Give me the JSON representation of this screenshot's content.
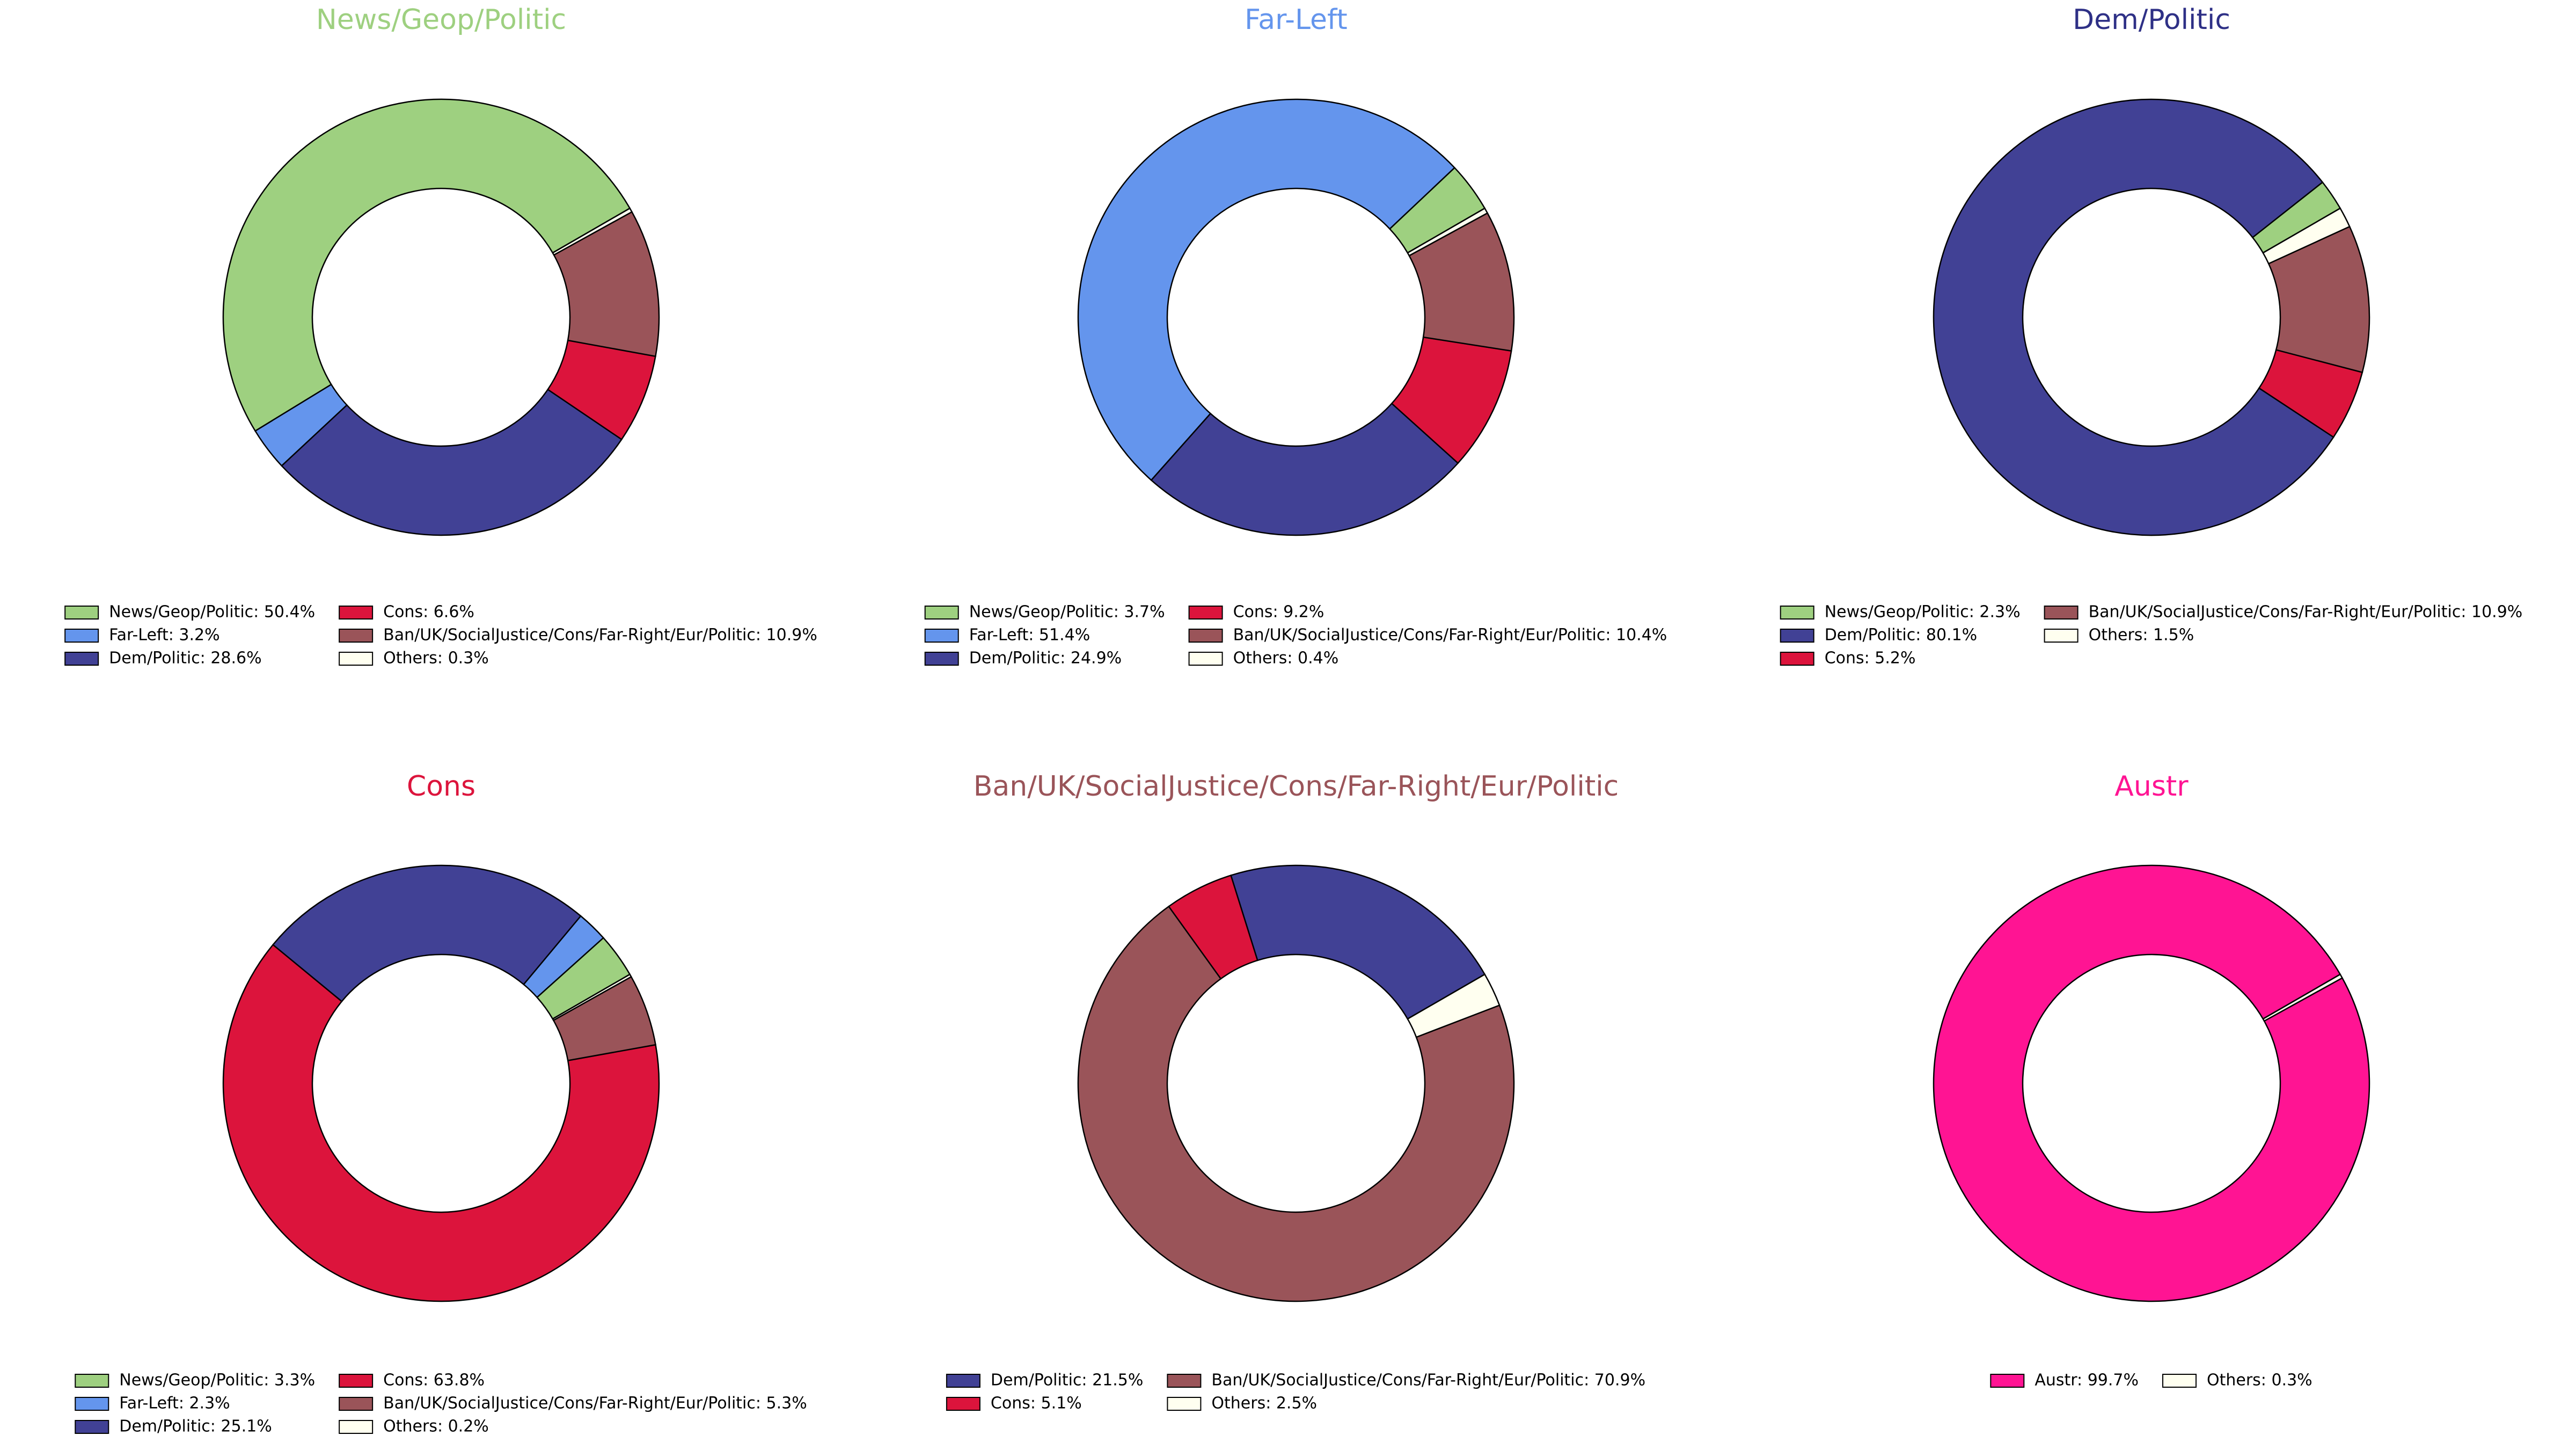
{
  "chart_data": [
    {
      "type": "pie",
      "title": "News/Geop/Politic",
      "title_color": "#9ed080",
      "labels": [
        "News/Geop/Politic: 50.4%",
        "Far-Left: 3.2%",
        "Dem/Politic: 28.6%",
        "Cons: 6.6%",
        "Ban/UK/SocialJustice/Cons/Far-Right/Eur/Politic: 10.9%",
        "Others: 0.3%"
      ],
      "values": [
        50.4,
        3.2,
        28.6,
        6.6,
        10.9,
        0.3
      ],
      "colors": [
        "#9ed080",
        "#6495ed",
        "#414195",
        "#dc143c",
        "#9a5459",
        "#fffff0"
      ]
    },
    {
      "type": "pie",
      "title": "Far-Left",
      "title_color": "#6495ed",
      "labels": [
        "News/Geop/Politic: 3.7%",
        "Far-Left: 51.4%",
        "Dem/Politic: 24.9%",
        "Cons: 9.2%",
        "Ban/UK/SocialJustice/Cons/Far-Right/Eur/Politic: 10.4%",
        "Others: 0.4%"
      ],
      "values": [
        3.7,
        51.4,
        24.9,
        9.2,
        10.4,
        0.4
      ],
      "colors": [
        "#9ed080",
        "#6495ed",
        "#414195",
        "#dc143c",
        "#9a5459",
        "#fffff0"
      ]
    },
    {
      "type": "pie",
      "title": "Dem/Politic",
      "title_color": "#2e3086",
      "labels": [
        "News/Geop/Politic: 2.3%",
        "Dem/Politic: 80.1%",
        "Cons: 5.2%",
        "Ban/UK/SocialJustice/Cons/Far-Right/Eur/Politic: 10.9%",
        "Others: 1.5%"
      ],
      "values": [
        2.3,
        80.1,
        5.2,
        10.9,
        1.5
      ],
      "colors": [
        "#9ed080",
        "#414195",
        "#dc143c",
        "#9a5459",
        "#fffff0"
      ]
    },
    {
      "type": "pie",
      "title": "Cons",
      "title_color": "#dc143c",
      "labels": [
        "News/Geop/Politic: 3.3%",
        "Far-Left: 2.3%",
        "Dem/Politic: 25.1%",
        "Cons: 63.8%",
        "Ban/UK/SocialJustice/Cons/Far-Right/Eur/Politic: 5.3%",
        "Others: 0.2%"
      ],
      "values": [
        3.3,
        2.3,
        25.1,
        63.8,
        5.3,
        0.2
      ],
      "colors": [
        "#9ed080",
        "#6495ed",
        "#414195",
        "#dc143c",
        "#9a5459",
        "#fffff0"
      ]
    },
    {
      "type": "pie",
      "title": "Ban/UK/SocialJustice/Cons/Far-Right/Eur/Politic",
      "title_color": "#9a5459",
      "labels": [
        "Dem/Politic: 21.5%",
        "Cons: 5.1%",
        "Ban/UK/SocialJustice/Cons/Far-Right/Eur/Politic: 70.9%",
        "Others: 2.5%"
      ],
      "values": [
        21.5,
        5.1,
        70.9,
        2.5
      ],
      "colors": [
        "#414195",
        "#dc143c",
        "#9a5459",
        "#fffff0"
      ]
    },
    {
      "type": "pie",
      "title": "Austr",
      "title_color": "#ff1493",
      "labels": [
        "Austr: 99.7%",
        "Others: 0.3%"
      ],
      "values": [
        99.7,
        0.3
      ],
      "colors": [
        "#ff1493",
        "#fffff0"
      ]
    }
  ]
}
